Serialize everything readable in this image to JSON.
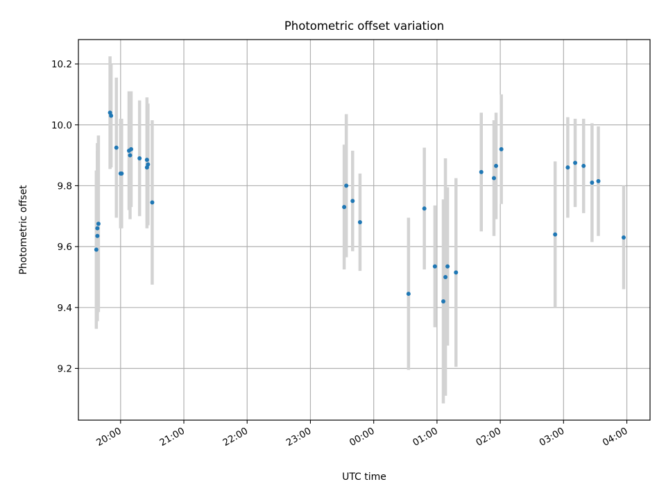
{
  "chart_data": {
    "type": "scatter",
    "title": "Photometric offset variation",
    "xlabel": "UTC time",
    "ylabel": "Photometric offset",
    "x_tick_labels": [
      "20:00",
      "21:00",
      "22:00",
      "23:00",
      "00:00",
      "01:00",
      "02:00",
      "03:00",
      "04:00"
    ],
    "y_tick_labels": [
      "9.2",
      "9.4",
      "9.6",
      "9.8",
      "10.0",
      "10.2"
    ],
    "y_ticks": [
      9.2,
      9.4,
      9.6,
      9.8,
      10.0,
      10.2
    ],
    "xlim": [
      "19:20",
      "04:22"
    ],
    "ylim": [
      9.03,
      10.28
    ],
    "grid": true,
    "error_bar_color": "#d3d3d3",
    "point_color": "#1f77b4",
    "series": [
      {
        "points": [
          {
            "time": "19:37",
            "y": 9.59,
            "err": 0.26
          },
          {
            "time": "19:38",
            "y": 9.66,
            "err": 0.28
          },
          {
            "time": "19:38",
            "y": 9.635,
            "err": 0.28
          },
          {
            "time": "19:39",
            "y": 9.675,
            "err": 0.29
          },
          {
            "time": "19:50",
            "y": 10.04,
            "err": 0.185
          },
          {
            "time": "19:51",
            "y": 10.03,
            "err": 0.17
          },
          {
            "time": "19:56",
            "y": 9.925,
            "err": 0.23
          },
          {
            "time": "20:00",
            "y": 9.84,
            "err": 0.18
          },
          {
            "time": "20:01",
            "y": 9.84,
            "err": 0.18
          },
          {
            "time": "20:08",
            "y": 9.915,
            "err": 0.195
          },
          {
            "time": "20:09",
            "y": 9.9,
            "err": 0.21
          },
          {
            "time": "20:10",
            "y": 9.92,
            "err": 0.19
          },
          {
            "time": "20:18",
            "y": 9.89,
            "err": 0.19
          },
          {
            "time": "20:25",
            "y": 9.885,
            "err": 0.205
          },
          {
            "time": "20:25",
            "y": 9.86,
            "err": 0.2
          },
          {
            "time": "20:26",
            "y": 9.87,
            "err": 0.2
          },
          {
            "time": "20:30",
            "y": 9.745,
            "err": 0.27
          },
          {
            "time": "23:32",
            "y": 9.73,
            "err": 0.205
          },
          {
            "time": "23:34",
            "y": 9.8,
            "err": 0.235
          },
          {
            "time": "23:40",
            "y": 9.75,
            "err": 0.165
          },
          {
            "time": "23:47",
            "y": 9.68,
            "err": 0.16
          },
          {
            "time": "00:33",
            "y": 9.445,
            "err": 0.25
          },
          {
            "time": "00:48",
            "y": 9.725,
            "err": 0.2
          },
          {
            "time": "00:58",
            "y": 9.535,
            "err": 0.2
          },
          {
            "time": "01:06",
            "y": 9.42,
            "err": 0.335
          },
          {
            "time": "01:08",
            "y": 9.5,
            "err": 0.39
          },
          {
            "time": "01:10",
            "y": 9.535,
            "err": 0.26
          },
          {
            "time": "01:18",
            "y": 9.515,
            "err": 0.31
          },
          {
            "time": "01:42",
            "y": 9.845,
            "err": 0.195
          },
          {
            "time": "01:54",
            "y": 9.825,
            "err": 0.19
          },
          {
            "time": "01:56",
            "y": 9.865,
            "err": 0.175
          },
          {
            "time": "02:01",
            "y": 9.92,
            "err": 0.18
          },
          {
            "time": "02:52",
            "y": 9.64,
            "err": 0.24
          },
          {
            "time": "03:04",
            "y": 9.86,
            "err": 0.165
          },
          {
            "time": "03:11",
            "y": 9.875,
            "err": 0.145
          },
          {
            "time": "03:19",
            "y": 9.865,
            "err": 0.155
          },
          {
            "time": "03:27",
            "y": 9.81,
            "err": 0.195
          },
          {
            "time": "03:33",
            "y": 9.815,
            "err": 0.18
          },
          {
            "time": "03:57",
            "y": 9.63,
            "err": 0.17
          }
        ]
      }
    ]
  }
}
